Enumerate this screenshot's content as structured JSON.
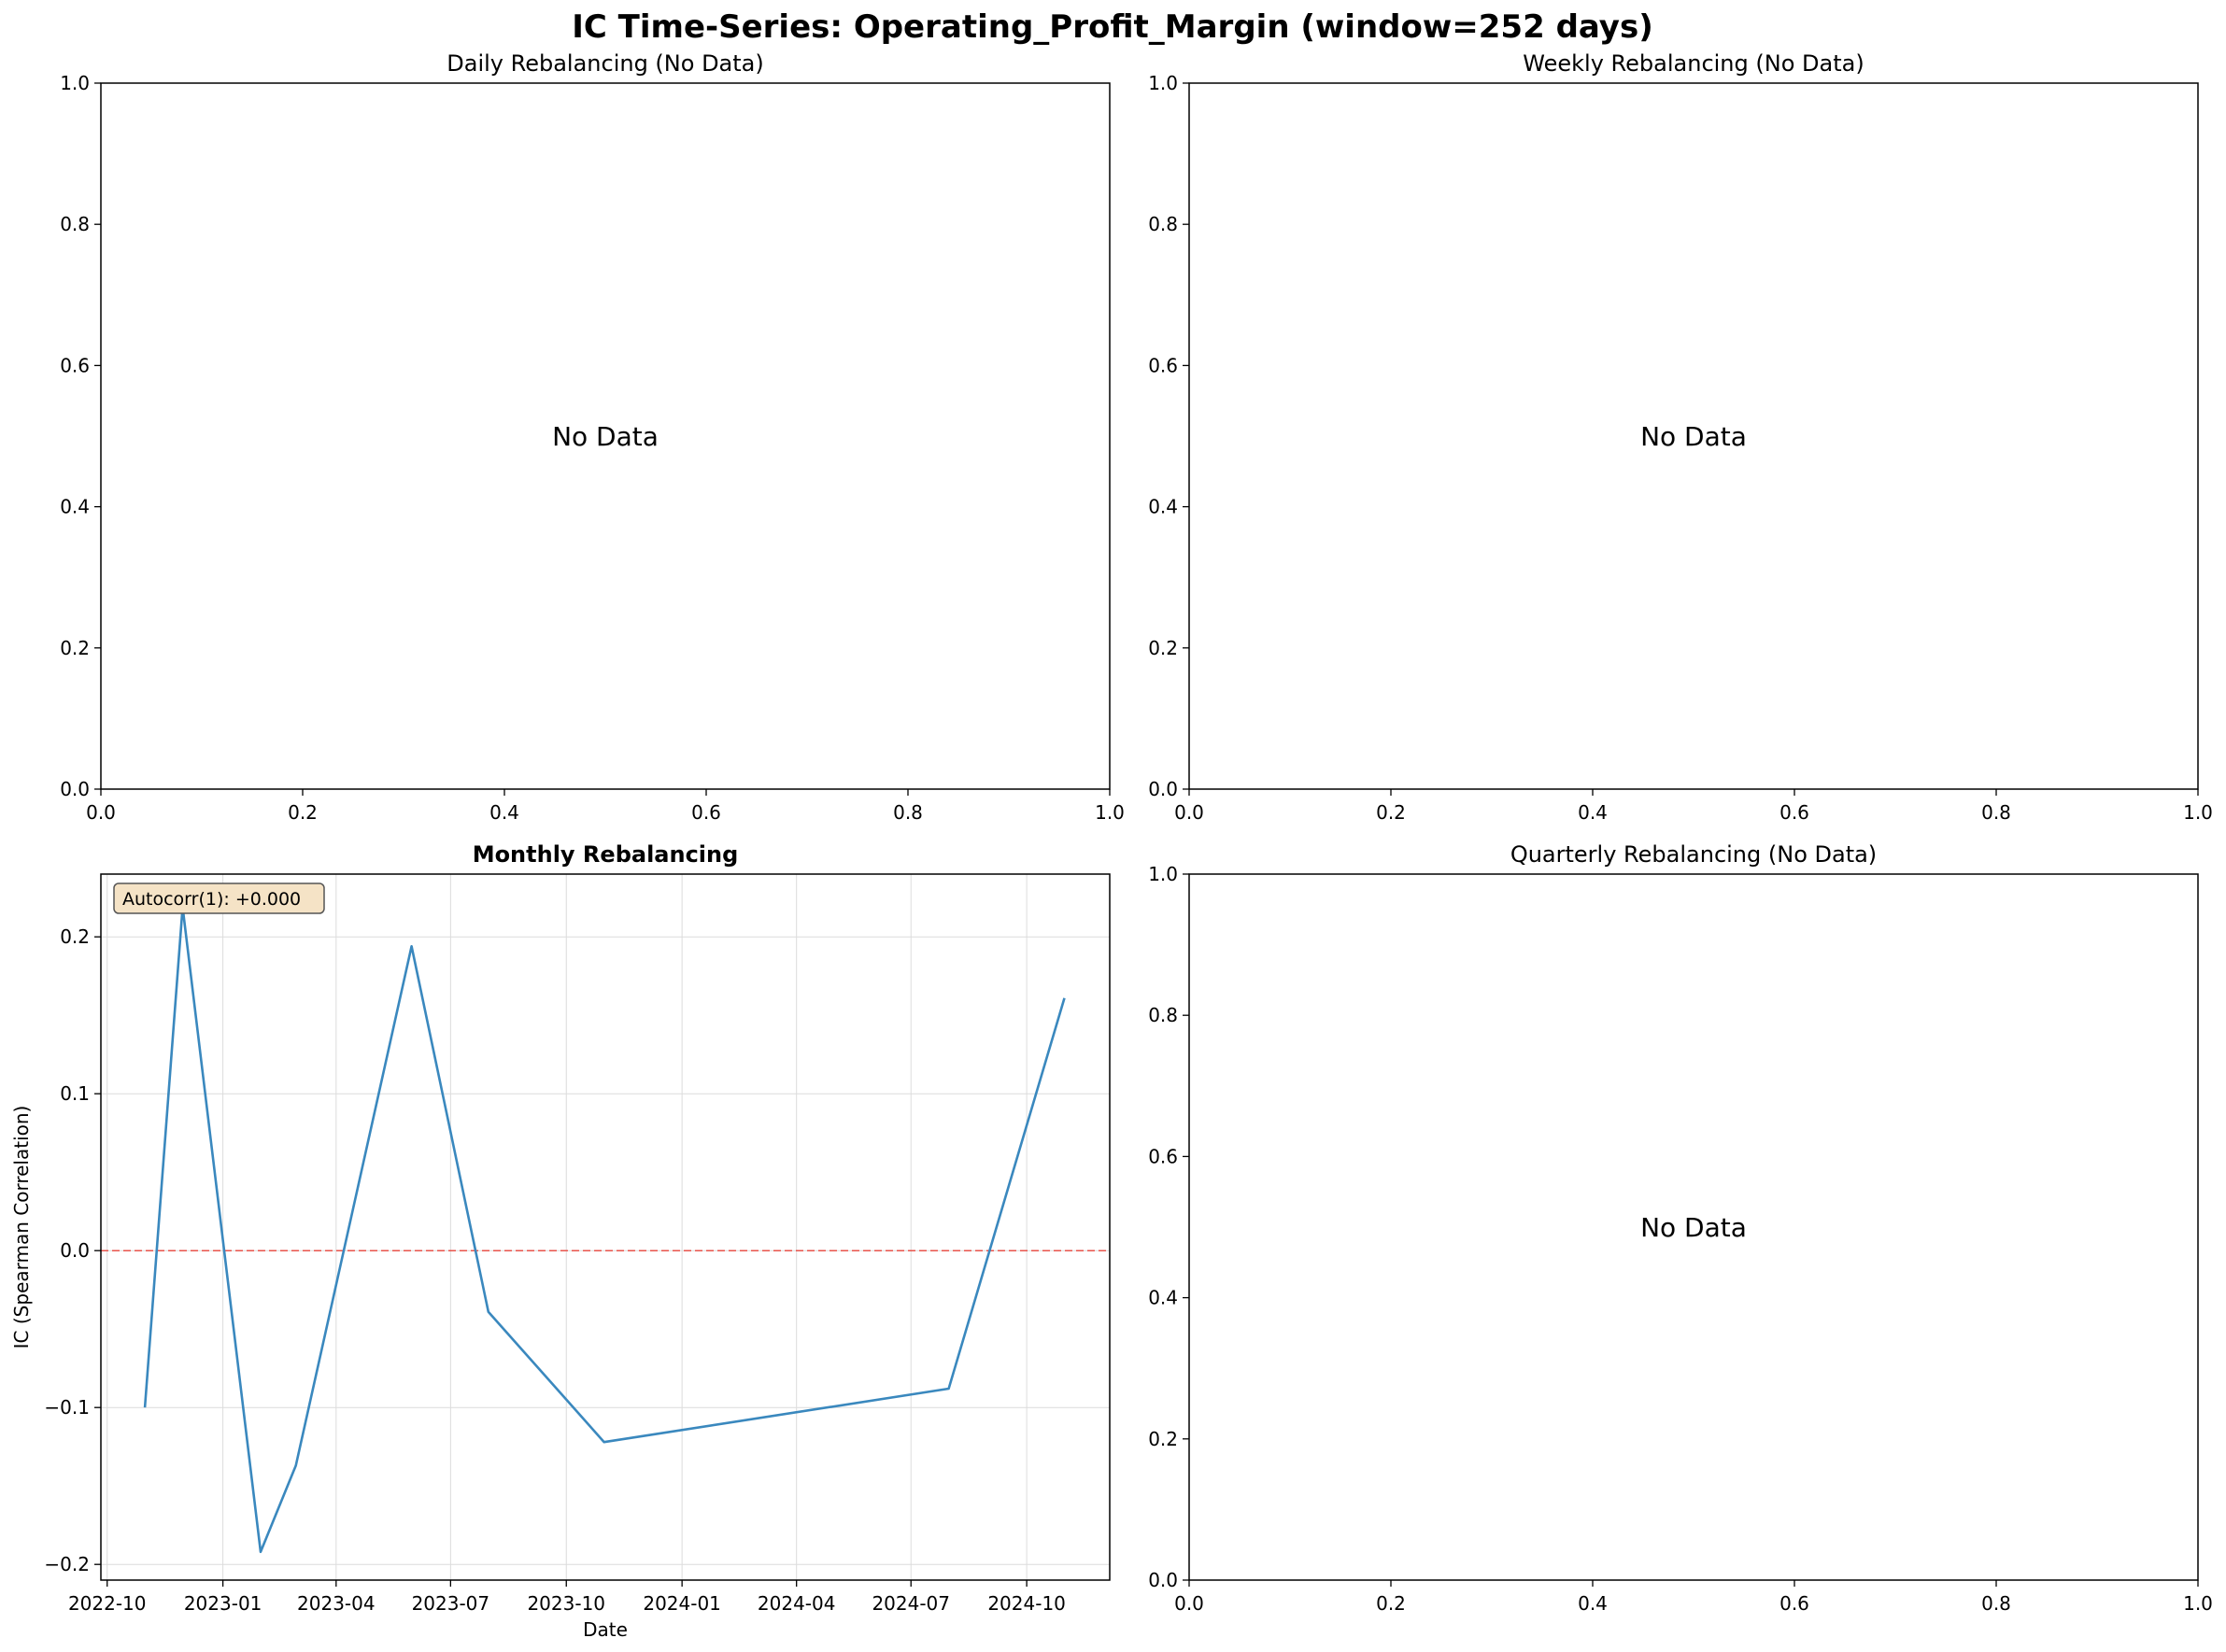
{
  "suptitle": "IC Time-Series: Operating_Profit_Margin (window=252 days)",
  "chart_data": [
    {
      "type": "line",
      "title": "Daily Rebalancing (No Data)",
      "no_data_text": "No Data",
      "xlim": [
        0,
        1
      ],
      "ylim": [
        0,
        1
      ],
      "xticks": [
        "0.0",
        "0.2",
        "0.4",
        "0.6",
        "0.8",
        "1.0"
      ],
      "yticks": [
        "0.0",
        "0.2",
        "0.4",
        "0.6",
        "0.8",
        "1.0"
      ],
      "series": []
    },
    {
      "type": "line",
      "title": "Weekly Rebalancing (No Data)",
      "no_data_text": "No Data",
      "xlim": [
        0,
        1
      ],
      "ylim": [
        0,
        1
      ],
      "xticks": [
        "0.0",
        "0.2",
        "0.4",
        "0.6",
        "0.8",
        "1.0"
      ],
      "yticks": [
        "0.0",
        "0.2",
        "0.4",
        "0.6",
        "0.8",
        "1.0"
      ],
      "series": []
    },
    {
      "type": "line",
      "title": "Monthly Rebalancing",
      "xlabel": "Date",
      "ylabel": "IC (Spearman Correlation)",
      "annotation": "Autocorr(1): +0.000",
      "xlim": [
        "2022-09-26",
        "2024-12-06"
      ],
      "ylim": [
        -0.21,
        0.24
      ],
      "grid": true,
      "xticks": [
        "2022-10",
        "2023-01",
        "2023-04",
        "2023-07",
        "2023-10",
        "2024-01",
        "2024-04",
        "2024-07",
        "2024-10"
      ],
      "yticks": [
        "0.2",
        "0.1",
        "0.0",
        "−0.1",
        "−0.2"
      ],
      "ytick_values": [
        0.2,
        0.1,
        0.0,
        -0.1,
        -0.2
      ],
      "reference_line": {
        "y": 0.0,
        "color": "#e8534b",
        "style": "dashed"
      },
      "series": [
        {
          "color": "#3a88be",
          "x": [
            "2022-10-31",
            "2022-11-30",
            "2023-01-31",
            "2023-02-28",
            "2023-05-31",
            "2023-07-31",
            "2023-10-31",
            "2024-07-31",
            "2024-10-31"
          ],
          "y": [
            -0.1,
            0.219,
            -0.192,
            -0.137,
            0.194,
            -0.039,
            -0.122,
            -0.088,
            0.161
          ]
        }
      ]
    },
    {
      "type": "line",
      "title": "Quarterly Rebalancing (No Data)",
      "no_data_text": "No Data",
      "xlim": [
        0,
        1
      ],
      "ylim": [
        0,
        1
      ],
      "xticks": [
        "0.0",
        "0.2",
        "0.4",
        "0.6",
        "0.8",
        "1.0"
      ],
      "yticks": [
        "0.0",
        "0.2",
        "0.4",
        "0.6",
        "0.8",
        "1.0"
      ],
      "series": []
    }
  ]
}
